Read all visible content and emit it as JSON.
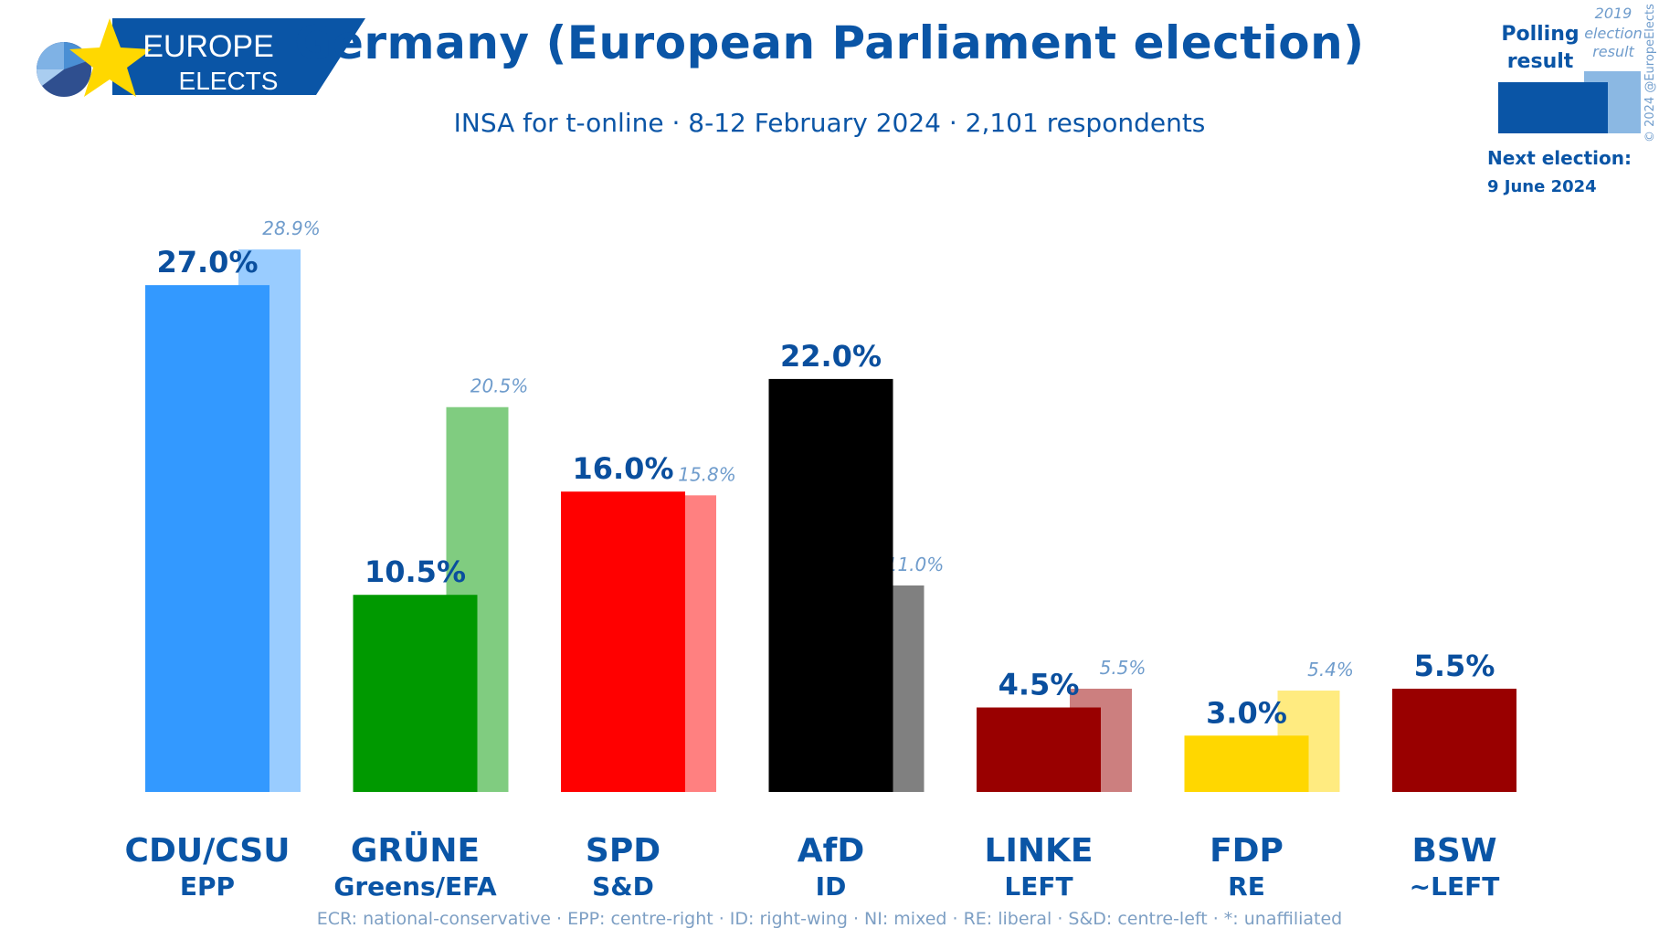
{
  "logo": {
    "line1": "EUROPE",
    "line2": "ELECTS"
  },
  "title": "Germany (European Parliament election)",
  "subtitle": "INSA for t-online · 8-12 February 2024 · 2,101 respondents",
  "legend": {
    "polling_line1": "Polling",
    "polling_line2": "result",
    "prev_line1": "2019",
    "prev_line2": "election",
    "prev_line3": "result",
    "next_label": "Next election:",
    "next_date": "9 June 2024",
    "copyright": "© 2024 @EuropeElects"
  },
  "footnote": "ECR: national-conservative · EPP: centre-right · ID: right-wing · NI: mixed · RE: liberal · S&D: centre-left · *: unaffiliated",
  "chart_data": {
    "type": "bar",
    "categories": [
      "CDU/CSU",
      "GRÜNE",
      "SPD",
      "AfD",
      "LINKE",
      "FDP",
      "BSW"
    ],
    "groups": [
      "EPP",
      "Greens/EFA",
      "S&D",
      "ID",
      "LEFT",
      "RE",
      "~LEFT"
    ],
    "series": [
      {
        "name": "Polling result",
        "values": [
          27.0,
          10.5,
          16.0,
          22.0,
          4.5,
          3.0,
          5.5
        ],
        "labels": [
          "27.0%",
          "10.5%",
          "16.0%",
          "22.0%",
          "4.5%",
          "3.0%",
          "5.5%"
        ]
      },
      {
        "name": "2019 election result",
        "values": [
          28.9,
          20.5,
          15.8,
          11.0,
          5.5,
          5.4,
          null
        ],
        "labels": [
          "28.9%",
          "20.5%",
          "15.8%",
          "11.0%",
          "5.5%",
          "5.4%",
          null
        ]
      }
    ],
    "colors": [
      "#3399ff",
      "#009900",
      "#ff0000",
      "#000000",
      "#990000",
      "#ffd700",
      "#990000"
    ],
    "prev_colors": [
      "#99ccff",
      "#80cc80",
      "#ff8080",
      "#808080",
      "#cc7f7f",
      "#ffeb80",
      null
    ],
    "ylim": [
      0,
      30
    ]
  }
}
